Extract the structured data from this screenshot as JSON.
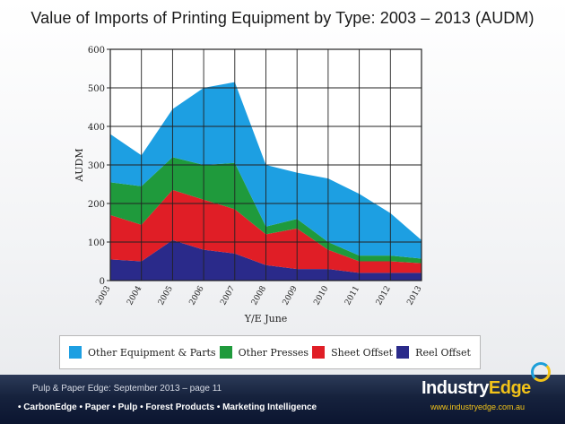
{
  "page": {
    "title": "Value of Imports of Printing Equipment by Type: 2003 – 2013 (AUDM)",
    "footer_ref": "Pulp & Paper Edge: September 2013 – page 11",
    "footer_tagline": "• CarbonEdge • Paper • Pulp • Forest Products • Marketing Intelligence",
    "brand": {
      "word1": "Industry",
      "word2": "Edge",
      "url": "www.industryedge.com.au"
    }
  },
  "colors": {
    "other_equipment": "#1d9fe2",
    "other_presses": "#1f9a3c",
    "sheet_offset": "#e01e26",
    "reel_offset": "#2a2a8a",
    "grid": "#222222"
  },
  "chart_data": {
    "type": "area",
    "stacked": true,
    "title": "Value of Imports of Printing Equipment by Type: 2003 – 2013 (AUDM)",
    "xlabel": "Y/E June",
    "ylabel": "AUDM",
    "ylim": [
      0,
      600
    ],
    "yticks": [
      0,
      100,
      200,
      300,
      400,
      500,
      600
    ],
    "grid": true,
    "legend_position": "bottom",
    "x": [
      "2003",
      "2004",
      "2005",
      "2006",
      "2007",
      "2008",
      "2009",
      "2010",
      "2011",
      "2012",
      "2013"
    ],
    "series": [
      {
        "name": "Reel Offset",
        "color": "#2a2a8a",
        "values": [
          55,
          50,
          105,
          80,
          70,
          40,
          30,
          30,
          20,
          20,
          20
        ]
      },
      {
        "name": "Sheet Offset",
        "color": "#e01e26",
        "values": [
          115,
          95,
          130,
          130,
          115,
          80,
          105,
          50,
          30,
          30,
          25
        ]
      },
      {
        "name": "Other Presses",
        "color": "#1f9a3c",
        "values": [
          85,
          100,
          85,
          90,
          120,
          20,
          25,
          20,
          15,
          15,
          12
        ]
      },
      {
        "name": "Other Equipment & Parts",
        "color": "#1d9fe2",
        "values": [
          125,
          80,
          125,
          200,
          210,
          160,
          120,
          165,
          160,
          110,
          48
        ]
      }
    ],
    "legend": [
      "Other Equipment & Parts",
      "Other Presses",
      "Sheet Offset",
      "Reel Offset"
    ]
  }
}
